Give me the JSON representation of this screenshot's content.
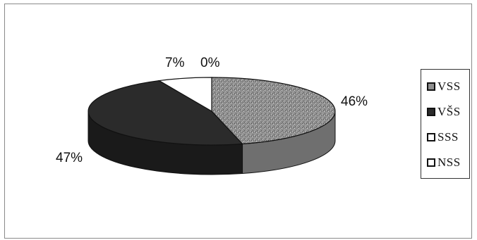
{
  "chart_data": {
    "type": "pie",
    "style": "3d-exploded",
    "categories": [
      "VSS",
      "VŠS",
      "SSS",
      "NSS"
    ],
    "values": [
      46,
      47,
      7,
      0
    ],
    "value_labels": [
      "46%",
      "47%",
      "7%",
      "0%"
    ],
    "colors": [
      "#8f8f8f",
      "#2b2b2b",
      "#ffffff",
      "#ffffff"
    ],
    "legend": "right",
    "title": ""
  }
}
